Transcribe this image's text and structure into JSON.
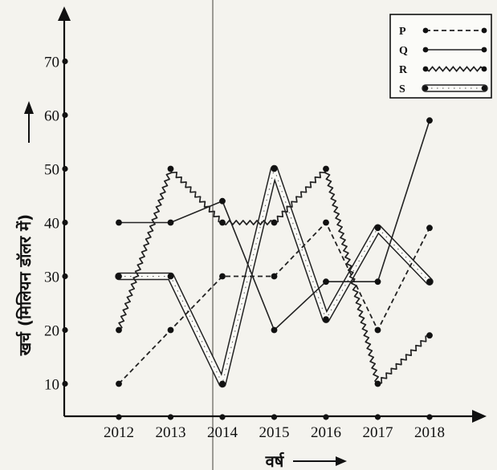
{
  "chart_data": {
    "type": "line",
    "title": "",
    "xlabel": "वर्ष",
    "ylabel": "खर्च (मिलियन डॉलर में)",
    "categories": [
      "2012",
      "2013",
      "2014",
      "2015",
      "2016",
      "2017",
      "2018"
    ],
    "yticks": [
      10,
      20,
      30,
      40,
      50,
      60,
      70
    ],
    "ylim": [
      0,
      75
    ],
    "grid": false,
    "legend_position": "top-right",
    "series": [
      {
        "name": "P",
        "style": "dashed",
        "values": [
          10,
          20,
          30,
          30,
          40,
          20,
          39
        ]
      },
      {
        "name": "Q",
        "style": "solid",
        "values": [
          40,
          40,
          44,
          20,
          29,
          29,
          59
        ]
      },
      {
        "name": "R",
        "style": "zigzag",
        "values": [
          20,
          50,
          40,
          40,
          50,
          10,
          19
        ]
      },
      {
        "name": "S",
        "style": "circles",
        "values": [
          30,
          30,
          10,
          50,
          22,
          39,
          29
        ]
      }
    ]
  }
}
